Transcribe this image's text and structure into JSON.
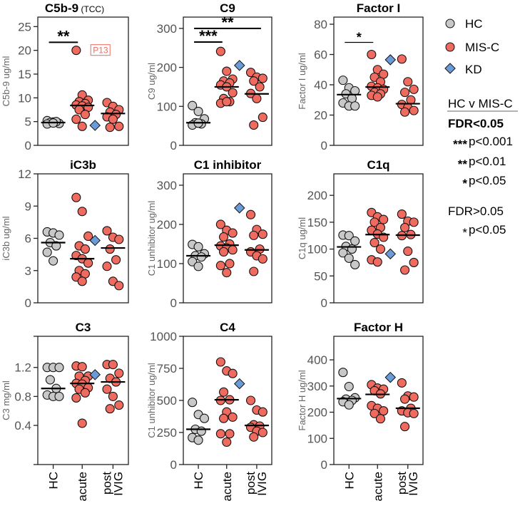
{
  "colors": {
    "HC": "#c8c8c8",
    "MIS-C": "#ef6a5f",
    "KD": "#6b9bd6"
  },
  "legend": {
    "items": [
      {
        "label": "HC",
        "shape": "circle",
        "color": "#c8c8c8"
      },
      {
        "label": "MIS-C",
        "shape": "circle",
        "color": "#ef6a5f"
      },
      {
        "label": "KD",
        "shape": "diamond",
        "color": "#6b9bd6"
      }
    ],
    "comparison_title": "HC v MIS-C",
    "fdr_sig_label": "FDR<0.05",
    "fdr_sig_rows": [
      {
        "stars": "***",
        "text": "p<0.001"
      },
      {
        "stars": "**",
        "text": "p<0.01"
      },
      {
        "stars": "*",
        "text": "p<0.05"
      }
    ],
    "fdr_ns_label": "FDR>0.05",
    "fdr_ns_rows": [
      {
        "stars": "*",
        "text": "p<0.05"
      }
    ]
  },
  "chart_data": [
    {
      "type": "scatter",
      "title": "C5b-9",
      "title_suffix": "(TCC)",
      "ylabel": "C5b-9  ug/ml",
      "ylim": [
        0,
        27
      ],
      "yticks": [
        0,
        5,
        10,
        15,
        20,
        25
      ],
      "ytick_labels": [
        "0",
        "5",
        "10",
        "15",
        "20",
        "25"
      ],
      "categories": [
        "HC",
        "acute",
        "post IVIG"
      ],
      "HC": [
        5.2,
        4.9,
        4.6,
        4.8,
        5.0,
        4.5,
        4.7
      ],
      "acute": [
        20,
        10.6,
        9.5,
        9.2,
        8.8,
        8.5,
        8.3,
        8.0,
        7.5,
        6.5,
        5.5,
        4.0
      ],
      "post": [
        9.0,
        8.2,
        7.5,
        7.0,
        6.5,
        6.0,
        5.5,
        4.0,
        3.8
      ],
      "KD": 4.2,
      "medians": [
        4.8,
        8.4,
        6.7
      ],
      "annotations": [
        {
          "text": "P13",
          "y": 20
        }
      ],
      "sig": [
        {
          "from": 0,
          "to": 1,
          "y": 21.7,
          "stars": "**"
        }
      ]
    },
    {
      "type": "scatter",
      "title": "C9",
      "ylabel": "C9 ug/ml",
      "ylim": [
        0,
        329
      ],
      "yticks": [
        0,
        100,
        200,
        300
      ],
      "ytick_labels": [
        "0",
        "100",
        "200",
        "300"
      ],
      "categories": [
        "HC",
        "acute",
        "post IVIG"
      ],
      "HC": [
        102,
        87,
        68,
        58,
        55,
        52,
        57
      ],
      "acute": [
        241,
        190,
        170,
        165,
        160,
        155,
        150,
        135,
        120,
        112,
        108,
        112
      ],
      "post": [
        187,
        175,
        172,
        165,
        150,
        133,
        120,
        72,
        52
      ],
      "KD": 205,
      "medians": [
        58,
        150,
        132
      ],
      "sig": [
        {
          "from": 0,
          "to": 1,
          "y": 265,
          "stars": "***"
        },
        {
          "from": 0,
          "to": 2,
          "y": 300,
          "stars": "**"
        }
      ]
    },
    {
      "type": "scatter",
      "title": "Factor I",
      "ylabel": "Factor I ug/ml",
      "ylim": [
        0,
        84.7
      ],
      "yticks": [
        0,
        20,
        40,
        60,
        80
      ],
      "ytick_labels": [
        "0",
        "20",
        "40",
        "60",
        "80"
      ],
      "categories": [
        "HC",
        "acute",
        "post IVIG"
      ],
      "HC": [
        43,
        38,
        36,
        34,
        31,
        28,
        26,
        26
      ],
      "acute": [
        60,
        50,
        47,
        45,
        42,
        39,
        38,
        37,
        35,
        34,
        33,
        32
      ],
      "post": [
        57,
        42,
        37,
        35,
        30,
        27,
        25,
        23,
        22
      ],
      "KD": 56.5,
      "medians": [
        33.5,
        38.5,
        27.5
      ],
      "sig": [
        {
          "from": 0,
          "to": 1,
          "y": 68,
          "stars": "*"
        }
      ]
    },
    {
      "type": "scatter",
      "title": "iC3b",
      "ylabel": "iC3b ug/ml",
      "ylim": [
        0,
        12
      ],
      "yticks": [
        0,
        3,
        6,
        9,
        12
      ],
      "ytick_labels": [
        "0",
        "3",
        "6",
        "9",
        "12"
      ],
      "categories": [
        "HC",
        "acute",
        "post IVIG"
      ],
      "HC": [
        6.6,
        6.5,
        6.3,
        5.6,
        5.3,
        4.7,
        3.9
      ],
      "acute": [
        9.8,
        8.5,
        6.2,
        5.3,
        5.0,
        4.4,
        4.1,
        3.7,
        3.0,
        2.7,
        2.4,
        2.0
      ],
      "post": [
        6.7,
        6.1,
        5.9,
        5.0,
        4.0,
        3.4,
        2.0,
        1.6
      ],
      "KD": 5.8,
      "medians": [
        5.6,
        4.1,
        5.1
      ],
      "sig": []
    },
    {
      "type": "scatter",
      "title": "C1 inhibitor",
      "ylabel": "C1 unhibitor ug/ml",
      "ylim": [
        0,
        329
      ],
      "yticks": [
        0,
        100,
        200,
        300
      ],
      "ytick_labels": [
        "0",
        "100",
        "200",
        "300"
      ],
      "categories": [
        "HC",
        "acute",
        "post IVIG"
      ],
      "HC": [
        149,
        143,
        125,
        120,
        117,
        105,
        93
      ],
      "acute": [
        200,
        185,
        178,
        168,
        150,
        145,
        140,
        135,
        130,
        100,
        95,
        77
      ],
      "post": [
        225,
        187,
        175,
        172,
        137,
        130,
        120,
        112,
        80
      ],
      "KD": 242,
      "medians": [
        120,
        147,
        135
      ],
      "sig": []
    },
    {
      "type": "scatter",
      "title": "C1q",
      "ylabel": "C1q ug/ml",
      "ylim": [
        0,
        240
      ],
      "yticks": [
        0,
        50,
        100,
        150,
        200
      ],
      "ytick_labels": [
        "0",
        "50",
        "100",
        "150",
        "200"
      ],
      "categories": [
        "HC",
        "acute",
        "post IVIG"
      ],
      "HC": [
        126,
        125,
        115,
        105,
        100,
        93,
        83,
        71
      ],
      "acute": [
        168,
        160,
        155,
        150,
        140,
        135,
        128,
        122,
        112,
        100,
        80,
        76
      ],
      "post": [
        165,
        152,
        150,
        140,
        127,
        125,
        96,
        75,
        61
      ],
      "KD": 91,
      "medians": [
        104,
        127,
        126
      ],
      "sig": []
    },
    {
      "type": "scatter",
      "title": "C3",
      "ylabel": "C3 mg/ml",
      "ylim": [
        -0.14,
        1.63
      ],
      "yticks": [
        -0.14,
        0.4,
        0.8,
        1.2,
        1.63
      ],
      "ytick_labels": [
        "",
        "0.4",
        "0.8",
        "1.2",
        ""
      ],
      "categories": [
        "HC",
        "acute",
        "post IVIG"
      ],
      "HC": [
        1.2,
        1.2,
        1.2,
        1.03,
        0.91,
        0.82,
        0.8,
        0.8
      ],
      "acute": [
        1.22,
        1.21,
        1.08,
        1.08,
        1.02,
        0.98,
        0.97,
        0.92,
        0.9,
        0.85,
        0.78,
        0.43
      ],
      "post": [
        1.24,
        1.24,
        1.12,
        1.05,
        1.0,
        0.9,
        0.8,
        0.68,
        0.63
      ],
      "KD": 1.1,
      "medians": [
        0.91,
        0.98,
        1.0
      ],
      "sig": []
    },
    {
      "type": "scatter",
      "title": "C4",
      "ylabel": "C1 unhibitor ug/ml",
      "ylim": [
        0,
        1000
      ],
      "yticks": [
        0,
        250,
        500,
        750,
        1000
      ],
      "ytick_labels": [
        "0",
        "250",
        "500",
        "750",
        "1000"
      ],
      "categories": [
        "HC",
        "acute",
        "post IVIG"
      ],
      "HC": [
        485,
        390,
        360,
        275,
        260,
        210,
        190
      ],
      "acute": [
        800,
        730,
        710,
        565,
        505,
        500,
        410,
        370,
        360,
        240,
        240,
        175
      ],
      "post": [
        500,
        425,
        410,
        310,
        300,
        290,
        260,
        250,
        215
      ],
      "KD": 630,
      "medians": [
        275,
        505,
        305
      ],
      "sig": []
    },
    {
      "type": "scatter",
      "title": "Factor H",
      "ylabel": "Factor H  ug/ml",
      "ylim": [
        0,
        490
      ],
      "yticks": [
        0,
        100,
        200,
        300,
        400
      ],
      "ytick_labels": [
        "0",
        "100",
        "200",
        "300",
        "400"
      ],
      "categories": [
        "HC",
        "acute",
        "post IVIG"
      ],
      "HC": [
        352,
        298,
        255,
        250,
        245,
        240,
        228
      ],
      "acute": [
        305,
        292,
        288,
        282,
        270,
        225,
        215,
        205,
        195,
        175
      ],
      "post": [
        312,
        262,
        258,
        250,
        215,
        205,
        198,
        195,
        145
      ],
      "KD": 333,
      "medians": [
        252,
        268,
        215
      ],
      "sig": []
    }
  ],
  "xlabels": [
    [
      "HC"
    ],
    [
      "acute"
    ],
    [
      "post",
      "IVIG"
    ]
  ]
}
